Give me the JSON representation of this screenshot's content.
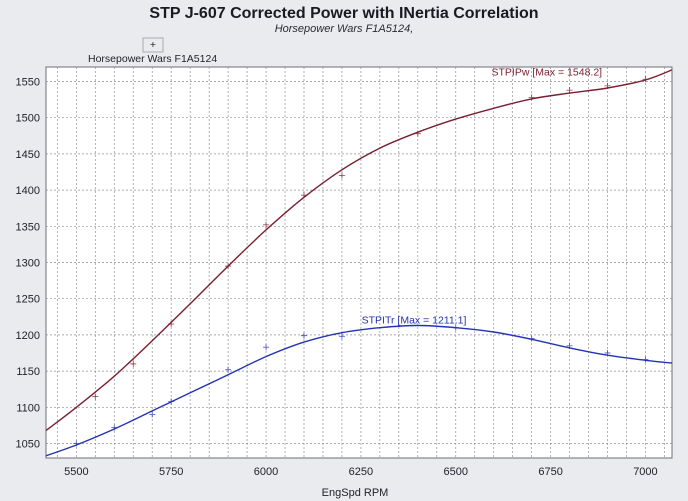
{
  "chart_data": {
    "type": "line",
    "title": "STP J-607 Corrected Power with INertia Correlation",
    "subtitle": "Horsepower Wars F1A5124,",
    "xlabel": "EngSpd RPM",
    "ylabel": "",
    "xlim": [
      5420,
      7070
    ],
    "ylim": [
      1030,
      1570
    ],
    "xticks": [
      5500,
      5750,
      6000,
      6250,
      6500,
      6750,
      7000
    ],
    "yticks": [
      1050,
      1100,
      1150,
      1200,
      1250,
      1300,
      1350,
      1400,
      1450,
      1500,
      1550
    ],
    "grid": true,
    "legend": {
      "placement": "top-left-outside",
      "entries": [
        {
          "label": "Horsepower Wars F1A5124",
          "marker": "+"
        }
      ]
    },
    "series": [
      {
        "name": "STPIPw",
        "color": "#7a1f2f",
        "x": [
          5420,
          5500,
          5600,
          5700,
          5800,
          5900,
          6000,
          6100,
          6200,
          6300,
          6400,
          6500,
          6600,
          6700,
          6800,
          6900,
          7000,
          7070
        ],
        "values": [
          1068,
          1100,
          1143,
          1192,
          1243,
          1295,
          1345,
          1390,
          1428,
          1458,
          1480,
          1498,
          1513,
          1526,
          1534,
          1541,
          1552,
          1566
        ],
        "markers_x": [
          5550,
          5650,
          5750,
          5900,
          6000,
          6100,
          6200,
          6400,
          6700,
          6800,
          6900,
          7000
        ],
        "markers_y": [
          1115,
          1160,
          1215,
          1295,
          1352,
          1393,
          1420,
          1478,
          1528,
          1538,
          1544,
          1553
        ]
      },
      {
        "name": "STPITr",
        "color": "#2433b5",
        "x": [
          5420,
          5500,
          5600,
          5700,
          5800,
          5900,
          6000,
          6100,
          6200,
          6300,
          6400,
          6500,
          6600,
          6700,
          6800,
          6900,
          7000,
          7070
        ],
        "values": [
          1033,
          1048,
          1070,
          1095,
          1120,
          1145,
          1170,
          1190,
          1203,
          1210,
          1213,
          1210,
          1204,
          1194,
          1182,
          1172,
          1165,
          1161
        ],
        "markers_x": [
          5500,
          5600,
          5700,
          5750,
          5900,
          6000,
          6100,
          6200,
          6500,
          6700,
          6800,
          6900,
          7000
        ],
        "markers_y": [
          1050,
          1072,
          1090,
          1108,
          1152,
          1183,
          1199,
          1198,
          1210,
          1195,
          1185,
          1175,
          1166
        ]
      }
    ],
    "annotations": [
      {
        "text": "STPIPw [Max = 1548.2]",
        "series": "STPIPw",
        "x": 6740,
        "y": 1558
      },
      {
        "text": "STPITr [Max = 1211.1]",
        "series": "STPITr",
        "x": 6390,
        "y": 1216
      }
    ]
  }
}
